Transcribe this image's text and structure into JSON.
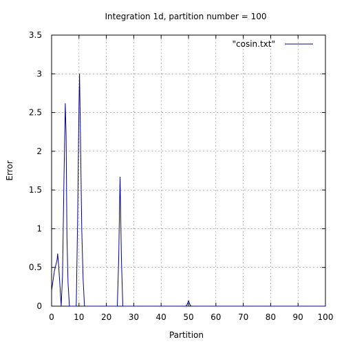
{
  "chart_data": {
    "type": "line",
    "title": "Integration 1d, partition number = 100",
    "xlabel": "Partition",
    "ylabel": "Error",
    "xlim": [
      0,
      100
    ],
    "ylim": [
      0,
      3.5
    ],
    "xticks": [
      "0",
      "10",
      "20",
      "30",
      "40",
      "50",
      "60",
      "70",
      "80",
      "90",
      "100"
    ],
    "yticks": [
      "0",
      "0.5",
      "1",
      "1.5",
      "2",
      "2.5",
      "3",
      "3.5"
    ],
    "grid": true,
    "legend_position": "top-right",
    "series": [
      {
        "name": "\"cosin.txt\"",
        "color": "#00008b",
        "x": [
          0,
          1,
          2,
          2.2,
          2.5,
          3,
          3.5,
          4,
          4.5,
          5,
          5.3,
          5.6,
          6,
          6.5,
          7,
          9,
          9.5,
          10,
          10.2,
          10.5,
          11,
          11.5,
          12,
          24,
          24.5,
          25,
          25.5,
          26,
          49,
          49.5,
          50,
          50.5,
          51,
          100
        ],
        "y": [
          0.2,
          0.45,
          0.6,
          0.68,
          0.55,
          0.3,
          0,
          0.4,
          1.6,
          2.62,
          2.2,
          0.9,
          0.3,
          0,
          0,
          0,
          1.1,
          2.6,
          3.0,
          2.3,
          1.0,
          0.35,
          0,
          0,
          0.6,
          1.67,
          0.6,
          0,
          0,
          0.02,
          0.07,
          0.02,
          0,
          0
        ]
      }
    ]
  }
}
